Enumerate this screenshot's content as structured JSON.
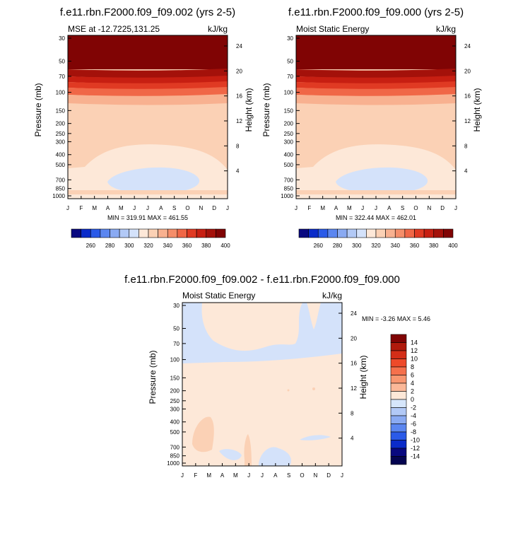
{
  "chart_data": [
    {
      "type": "heatmap",
      "title": "f.e11.rbn.F2000.f09_f09.002 (yrs 2-5)",
      "left_label": "MSE at -12.7225,131.25",
      "right_label": "kJ/kg",
      "ylabel": "Pressure (mb)",
      "y2label": "Height (km)",
      "x_ticks": [
        "J",
        "F",
        "M",
        "A",
        "M",
        "J",
        "J",
        "A",
        "S",
        "O",
        "N",
        "D",
        "J"
      ],
      "y_ticks": [
        "30",
        "50",
        "70",
        "100",
        "150",
        "200",
        "250",
        "300",
        "400",
        "500",
        "700",
        "850",
        "1000"
      ],
      "y_tick_values": [
        30,
        50,
        70,
        100,
        150,
        200,
        250,
        300,
        400,
        500,
        700,
        850,
        1000
      ],
      "y2_ticks": [
        "24",
        "20",
        "16",
        "12",
        "8",
        "4"
      ],
      "y2_tick_values": [
        24,
        20,
        16,
        12,
        8,
        4
      ],
      "stats": "MIN = 319.91  MAX = 461.55",
      "min": 319.91,
      "max": 461.55
    },
    {
      "type": "heatmap",
      "title": "f.e11.rbn.F2000.f09_f09.000 (yrs 2-5)",
      "left_label": "Moist Static Energy",
      "right_label": "kJ/kg",
      "ylabel": "Pressure (mb)",
      "y2label": "Height (km)",
      "x_ticks": [
        "J",
        "F",
        "M",
        "A",
        "M",
        "J",
        "J",
        "A",
        "S",
        "O",
        "N",
        "D",
        "J"
      ],
      "y_ticks": [
        "30",
        "50",
        "70",
        "100",
        "150",
        "200",
        "250",
        "300",
        "400",
        "500",
        "700",
        "850",
        "1000"
      ],
      "y_tick_values": [
        30,
        50,
        70,
        100,
        150,
        200,
        250,
        300,
        400,
        500,
        700,
        850,
        1000
      ],
      "y2_ticks": [
        "24",
        "20",
        "16",
        "12",
        "8",
        "4"
      ],
      "y2_tick_values": [
        24,
        20,
        16,
        12,
        8,
        4
      ],
      "stats": "MIN = 322.44  MAX = 462.01",
      "min": 322.44,
      "max": 462.01
    },
    {
      "type": "heatmap",
      "title": "f.e11.rbn.F2000.f09_f09.002 - f.e11.rbn.F2000.f09_f09.000",
      "left_label": "Moist Static Energy",
      "right_label": "kJ/kg",
      "ylabel": "Pressure (mb)",
      "y2label": "Height (km)",
      "x_ticks": [
        "J",
        "F",
        "M",
        "A",
        "M",
        "J",
        "J",
        "A",
        "S",
        "O",
        "N",
        "D",
        "J"
      ],
      "y_ticks": [
        "30",
        "50",
        "70",
        "100",
        "150",
        "200",
        "250",
        "300",
        "400",
        "500",
        "700",
        "850",
        "1000"
      ],
      "y_tick_values": [
        30,
        50,
        70,
        100,
        150,
        200,
        250,
        300,
        400,
        500,
        700,
        850,
        1000
      ],
      "y2_ticks": [
        "24",
        "20",
        "16",
        "12",
        "8",
        "4"
      ],
      "y2_tick_values": [
        24,
        20,
        16,
        12,
        8,
        4
      ],
      "stats": "MIN =   -3.26  MAX =    5.46",
      "min": -3.26,
      "max": 5.46
    }
  ],
  "abs_colorbar": {
    "labels": [
      "260",
      "280",
      "300",
      "320",
      "340",
      "360",
      "380",
      "400"
    ],
    "colors": [
      "#08087f",
      "#0a2bc9",
      "#2a5ae8",
      "#5b86f0",
      "#8aaaf2",
      "#b2c9f6",
      "#d4e2fa",
      "#fde8d8",
      "#fbd1b5",
      "#f8b190",
      "#f58e6a",
      "#f06747",
      "#e03a23",
      "#c71f12",
      "#a4110a",
      "#800404"
    ]
  },
  "diff_colorbar": {
    "labels": [
      "14",
      "12",
      "10",
      "8",
      "6",
      "4",
      "2",
      "0",
      "-2",
      "-4",
      "-6",
      "-8",
      "-10",
      "-12",
      "-14"
    ],
    "colors": [
      "#800404",
      "#b01a0c",
      "#d42e18",
      "#ee4a2a",
      "#f5704c",
      "#f89670",
      "#fbb898",
      "#fde8d8",
      "#d6e6fb",
      "#b2c9f6",
      "#8aaaf2",
      "#5b86f0",
      "#2a5ae8",
      "#0a2bc9",
      "#08087f",
      "#040450"
    ]
  },
  "colors": {
    "dark_red": "#800404",
    "red2": "#a4110a",
    "red3": "#c71f12",
    "red4": "#e03a23",
    "red5": "#f06747",
    "peach": "#f8b190",
    "salmon": "#fbd1b5",
    "cream": "#fde8d8",
    "light_blue": "#d4e2fa"
  }
}
